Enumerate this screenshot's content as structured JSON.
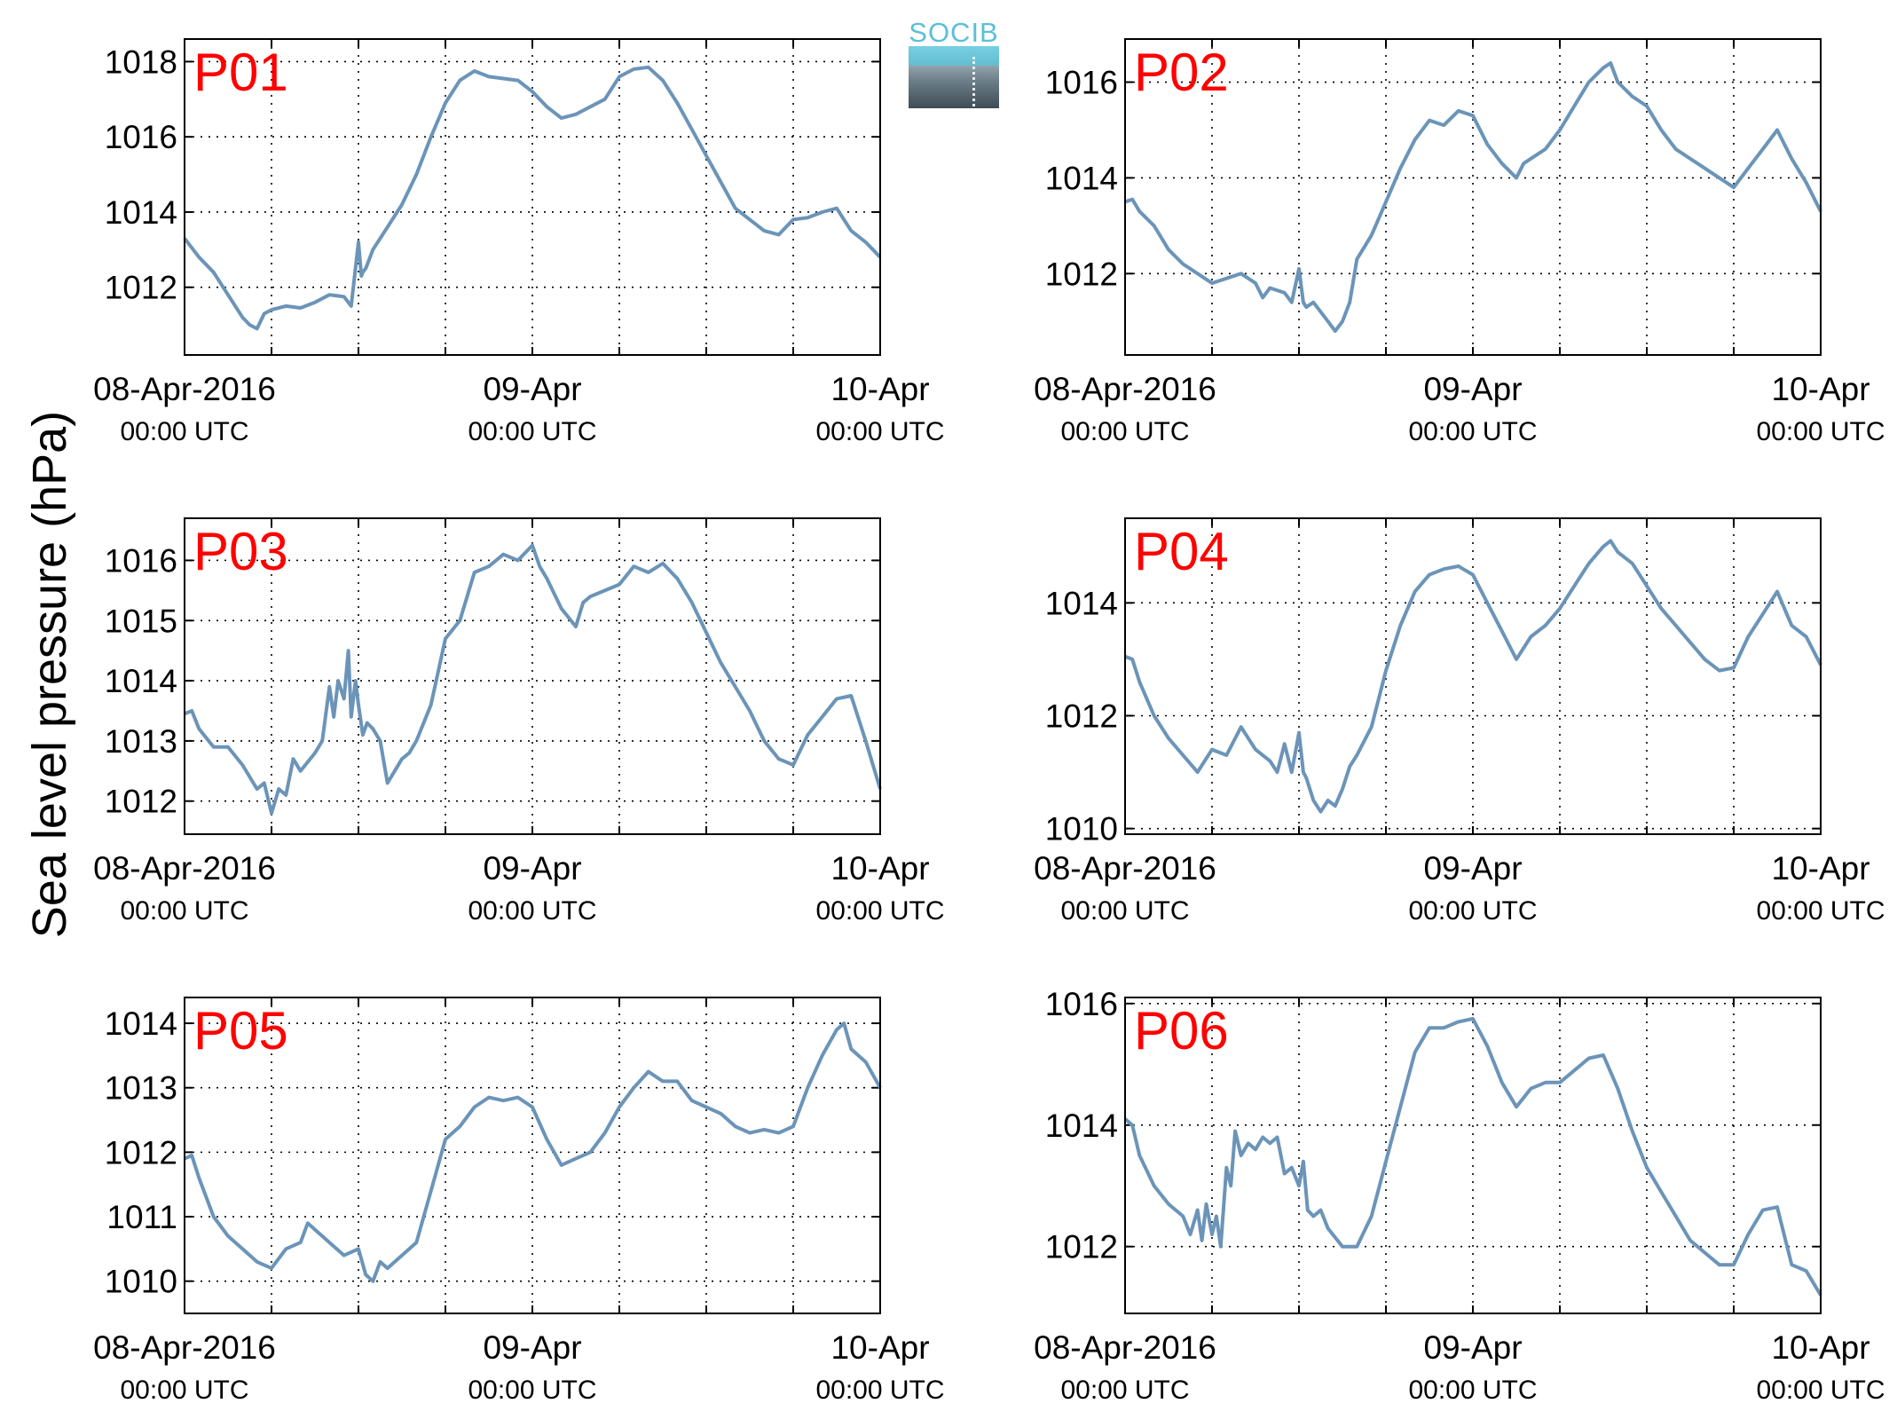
{
  "figure": {
    "ylabel": "Sea level pressure (hPa)",
    "logo_text": "SOCIB",
    "line_color": "#6b94b8",
    "panel_label_color": "#ff0000"
  },
  "chart_data": [
    {
      "type": "line",
      "label": "P01",
      "x_unit": "hours since 08-Apr-2016 00:00 UTC",
      "xlim": [
        0,
        48
      ],
      "ylim": [
        1010.2,
        1018.6
      ],
      "yticks": [
        1012,
        1014,
        1016,
        1018
      ],
      "xticks_major": [
        {
          "at": 0,
          "date": "08-Apr-2016",
          "time": "00:00 UTC"
        },
        {
          "at": 24,
          "date": "09-Apr",
          "time": "00:00 UTC"
        },
        {
          "at": 48,
          "date": "10-Apr",
          "time": "00:00 UTC"
        }
      ],
      "xticks_minor": [
        6,
        12,
        18,
        30,
        36,
        42
      ],
      "grid": true,
      "series": [
        {
          "x": [
            0,
            1,
            2,
            3,
            4,
            4.5,
            5,
            5.5,
            6,
            7,
            8,
            9,
            10,
            11,
            11.5,
            12,
            12.2,
            12.3,
            12.5,
            13,
            14,
            15,
            16,
            17,
            18,
            19,
            20,
            21,
            22,
            23,
            24,
            25,
            26,
            27,
            27.5,
            28,
            29,
            30,
            31,
            32,
            33,
            34,
            35,
            36,
            37,
            38,
            39,
            40,
            41,
            42,
            43,
            44,
            45,
            46,
            47,
            48
          ],
          "y": [
            1013.3,
            1012.8,
            1012.4,
            1011.8,
            1011.2,
            1011.0,
            1010.9,
            1011.3,
            1011.4,
            1011.5,
            1011.45,
            1011.6,
            1011.8,
            1011.75,
            1011.5,
            1013.2,
            1012.3,
            1012.4,
            1012.5,
            1013.0,
            1013.6,
            1014.2,
            1015.0,
            1016.0,
            1016.9,
            1017.5,
            1017.75,
            1017.6,
            1017.55,
            1017.5,
            1017.2,
            1016.8,
            1016.5,
            1016.6,
            1016.7,
            1016.8,
            1017.0,
            1017.6,
            1017.8,
            1017.85,
            1017.5,
            1016.9,
            1016.2,
            1015.5,
            1014.8,
            1014.1,
            1013.8,
            1013.5,
            1013.4,
            1013.8,
            1013.85,
            1014.0,
            1014.1,
            1013.5,
            1013.2,
            1012.8
          ]
        }
      ]
    },
    {
      "type": "line",
      "label": "P02",
      "x_unit": "hours since 08-Apr-2016 00:00 UTC",
      "xlim": [
        0,
        48
      ],
      "ylim": [
        1010.3,
        1016.9
      ],
      "yticks": [
        1012,
        1014,
        1016
      ],
      "xticks_major": [
        {
          "at": 0,
          "date": "08-Apr-2016",
          "time": "00:00 UTC"
        },
        {
          "at": 24,
          "date": "09-Apr",
          "time": "00:00 UTC"
        },
        {
          "at": 48,
          "date": "10-Apr",
          "time": "00:00 UTC"
        }
      ],
      "xticks_minor": [
        6,
        12,
        18,
        30,
        36,
        42
      ],
      "grid": true,
      "series": [
        {
          "x": [
            0,
            0.5,
            1,
            2,
            3,
            4,
            5,
            6,
            7,
            8,
            9,
            9.5,
            10,
            11,
            11.5,
            12,
            12.3,
            12.5,
            13,
            14,
            14.5,
            15,
            15.5,
            16,
            17,
            18,
            19,
            20,
            21,
            22,
            23,
            24,
            25,
            26,
            27,
            27.5,
            28,
            29,
            30,
            31,
            32,
            33,
            33.5,
            34,
            35,
            36,
            37,
            38,
            39,
            40,
            41,
            42,
            43,
            44,
            45,
            46,
            47,
            48
          ],
          "y": [
            1013.5,
            1013.55,
            1013.3,
            1013.0,
            1012.5,
            1012.2,
            1012.0,
            1011.8,
            1011.9,
            1012.0,
            1011.8,
            1011.5,
            1011.7,
            1011.6,
            1011.4,
            1012.1,
            1011.4,
            1011.3,
            1011.4,
            1011.0,
            1010.8,
            1011.0,
            1011.4,
            1012.3,
            1012.8,
            1013.5,
            1014.2,
            1014.8,
            1015.2,
            1015.1,
            1015.4,
            1015.3,
            1014.7,
            1014.3,
            1014.0,
            1014.3,
            1014.4,
            1014.6,
            1015.0,
            1015.5,
            1016.0,
            1016.3,
            1016.4,
            1016.0,
            1015.7,
            1015.5,
            1015.0,
            1014.6,
            1014.4,
            1014.2,
            1014.0,
            1013.8,
            1014.2,
            1014.6,
            1015.0,
            1014.4,
            1013.9,
            1013.3
          ]
        }
      ]
    },
    {
      "type": "line",
      "label": "P03",
      "x_unit": "hours since 08-Apr-2016 00:00 UTC",
      "xlim": [
        0,
        48
      ],
      "ylim": [
        1011.45,
        1016.7
      ],
      "yticks": [
        1012,
        1013,
        1014,
        1015,
        1016
      ],
      "xticks_major": [
        {
          "at": 0,
          "date": "08-Apr-2016",
          "time": "00:00 UTC"
        },
        {
          "at": 24,
          "date": "09-Apr",
          "time": "00:00 UTC"
        },
        {
          "at": 48,
          "date": "10-Apr",
          "time": "00:00 UTC"
        }
      ],
      "xticks_minor": [
        6,
        12,
        18,
        30,
        36,
        42
      ],
      "grid": true,
      "series": [
        {
          "x": [
            0,
            0.5,
            1,
            2,
            3,
            4,
            5,
            5.5,
            6,
            6.5,
            7,
            7.5,
            8,
            9,
            9.5,
            10,
            10.3,
            10.6,
            11,
            11.3,
            11.5,
            11.8,
            12,
            12.3,
            12.6,
            13,
            13.5,
            14,
            15,
            15.5,
            16,
            17,
            18,
            19,
            20,
            21,
            22,
            23,
            24,
            24.5,
            25,
            26,
            27,
            27.5,
            28,
            29,
            30,
            31,
            32,
            33,
            34,
            35,
            36,
            37,
            38,
            39,
            40,
            41,
            42,
            43,
            44,
            45,
            46,
            47,
            48
          ],
          "y": [
            1013.45,
            1013.5,
            1013.2,
            1012.9,
            1012.9,
            1012.6,
            1012.2,
            1012.3,
            1011.8,
            1012.2,
            1012.1,
            1012.7,
            1012.5,
            1012.8,
            1013.0,
            1013.9,
            1013.4,
            1014.0,
            1013.7,
            1014.5,
            1013.4,
            1014.0,
            1013.6,
            1013.1,
            1013.3,
            1013.2,
            1013.0,
            1012.3,
            1012.7,
            1012.8,
            1013.0,
            1013.6,
            1014.7,
            1015.0,
            1015.8,
            1015.9,
            1016.1,
            1016.0,
            1016.25,
            1015.9,
            1015.7,
            1015.2,
            1014.9,
            1015.3,
            1015.4,
            1015.5,
            1015.6,
            1015.9,
            1015.8,
            1015.95,
            1015.7,
            1015.3,
            1014.8,
            1014.3,
            1013.9,
            1013.5,
            1013.0,
            1012.7,
            1012.6,
            1013.1,
            1013.4,
            1013.7,
            1013.75,
            1013.0,
            1012.2
          ]
        }
      ]
    },
    {
      "type": "line",
      "label": "P04",
      "x_unit": "hours since 08-Apr-2016 00:00 UTC",
      "xlim": [
        0,
        48
      ],
      "ylim": [
        1009.9,
        1015.5
      ],
      "yticks": [
        1010,
        1012,
        1014
      ],
      "xticks_major": [
        {
          "at": 0,
          "date": "08-Apr-2016",
          "time": "00:00 UTC"
        },
        {
          "at": 24,
          "date": "09-Apr",
          "time": "00:00 UTC"
        },
        {
          "at": 48,
          "date": "10-Apr",
          "time": "00:00 UTC"
        }
      ],
      "xticks_minor": [
        6,
        12,
        18,
        30,
        36,
        42
      ],
      "grid": true,
      "series": [
        {
          "x": [
            0,
            0.5,
            1,
            2,
            3,
            4,
            5,
            6,
            7,
            8,
            9,
            10,
            10.5,
            11,
            11.5,
            12,
            12.3,
            12.5,
            13,
            13.5,
            14,
            14.5,
            15,
            15.5,
            16,
            17,
            18,
            19,
            20,
            21,
            22,
            23,
            24,
            25,
            26,
            27,
            27.5,
            28,
            29,
            30,
            31,
            32,
            33,
            33.5,
            34,
            35,
            36,
            37,
            38,
            39,
            40,
            41,
            42,
            43,
            44,
            45,
            46,
            47,
            48
          ],
          "y": [
            1013.05,
            1013.0,
            1012.6,
            1012.0,
            1011.6,
            1011.3,
            1011.0,
            1011.4,
            1011.3,
            1011.8,
            1011.4,
            1011.2,
            1011.0,
            1011.5,
            1011.0,
            1011.7,
            1011.0,
            1010.9,
            1010.5,
            1010.3,
            1010.5,
            1010.4,
            1010.7,
            1011.1,
            1011.3,
            1011.8,
            1012.8,
            1013.6,
            1014.2,
            1014.5,
            1014.6,
            1014.65,
            1014.5,
            1014.0,
            1013.5,
            1013.0,
            1013.2,
            1013.4,
            1013.6,
            1013.9,
            1014.3,
            1014.7,
            1015.0,
            1015.1,
            1014.9,
            1014.7,
            1014.3,
            1013.9,
            1013.6,
            1013.3,
            1013.0,
            1012.8,
            1012.85,
            1013.4,
            1013.8,
            1014.2,
            1013.6,
            1013.4,
            1012.9
          ]
        }
      ]
    },
    {
      "type": "line",
      "label": "P05",
      "x_unit": "hours since 08-Apr-2016 00:00 UTC",
      "xlim": [
        0,
        48
      ],
      "ylim": [
        1009.5,
        1014.4
      ],
      "yticks": [
        1010,
        1011,
        1012,
        1013,
        1014
      ],
      "xticks_major": [
        {
          "at": 0,
          "date": "08-Apr-2016",
          "time": "00:00 UTC"
        },
        {
          "at": 24,
          "date": "09-Apr",
          "time": "00:00 UTC"
        },
        {
          "at": 48,
          "date": "10-Apr",
          "time": "00:00 UTC"
        }
      ],
      "xticks_minor": [
        6,
        12,
        18,
        30,
        36,
        42
      ],
      "grid": true,
      "series": [
        {
          "x": [
            0,
            0.5,
            1,
            2,
            3,
            4,
            5,
            6,
            7,
            8,
            8.5,
            9,
            10,
            11,
            12,
            12.5,
            13,
            13.5,
            14,
            15,
            16,
            17,
            18,
            19,
            20,
            21,
            22,
            23,
            24,
            25,
            26,
            27,
            28,
            29,
            30,
            31,
            32,
            33,
            34,
            35,
            36,
            37,
            38,
            39,
            40,
            41,
            42,
            43,
            44,
            45,
            45.5,
            46,
            47,
            48
          ],
          "y": [
            1011.9,
            1011.95,
            1011.6,
            1011.0,
            1010.7,
            1010.5,
            1010.3,
            1010.2,
            1010.5,
            1010.6,
            1010.9,
            1010.8,
            1010.6,
            1010.4,
            1010.5,
            1010.1,
            1010.0,
            1010.3,
            1010.2,
            1010.4,
            1010.6,
            1011.4,
            1012.2,
            1012.4,
            1012.7,
            1012.85,
            1012.8,
            1012.85,
            1012.7,
            1012.2,
            1011.8,
            1011.9,
            1012.0,
            1012.3,
            1012.7,
            1013.0,
            1013.25,
            1013.1,
            1013.1,
            1012.8,
            1012.7,
            1012.6,
            1012.4,
            1012.3,
            1012.35,
            1012.3,
            1012.4,
            1013.0,
            1013.5,
            1013.9,
            1014.0,
            1013.6,
            1013.4,
            1013.0
          ]
        }
      ]
    },
    {
      "type": "line",
      "label": "P06",
      "x_unit": "hours since 08-Apr-2016 00:00 UTC",
      "xlim": [
        0,
        48
      ],
      "ylim": [
        1010.9,
        1016.1
      ],
      "yticks": [
        1012,
        1014,
        1016
      ],
      "xticks_major": [
        {
          "at": 0,
          "date": "08-Apr-2016",
          "time": "00:00 UTC"
        },
        {
          "at": 24,
          "date": "09-Apr",
          "time": "00:00 UTC"
        },
        {
          "at": 48,
          "date": "10-Apr",
          "time": "00:00 UTC"
        }
      ],
      "xticks_minor": [
        6,
        12,
        18,
        30,
        36,
        42
      ],
      "grid": true,
      "series": [
        {
          "x": [
            0,
            0.5,
            1,
            2,
            3,
            4,
            4.5,
            5,
            5.3,
            5.6,
            6,
            6.3,
            6.6,
            7,
            7.3,
            7.6,
            8,
            8.5,
            9,
            9.5,
            10,
            10.5,
            11,
            11.5,
            12,
            12.3,
            12.6,
            13,
            13.5,
            14,
            15,
            16,
            17,
            18,
            19,
            20,
            21,
            22,
            23,
            24,
            25,
            26,
            27,
            28,
            29,
            30,
            31,
            32,
            33,
            34,
            35,
            36,
            37,
            38,
            39,
            40,
            41,
            42,
            43,
            44,
            45,
            46,
            47,
            48
          ],
          "y": [
            1014.1,
            1014.0,
            1013.5,
            1013.0,
            1012.7,
            1012.5,
            1012.2,
            1012.6,
            1012.1,
            1012.7,
            1012.2,
            1012.5,
            1012.0,
            1013.3,
            1013.0,
            1013.9,
            1013.5,
            1013.7,
            1013.6,
            1013.8,
            1013.7,
            1013.8,
            1013.2,
            1013.3,
            1013.0,
            1013.4,
            1012.6,
            1012.5,
            1012.6,
            1012.3,
            1012.0,
            1012.0,
            1012.5,
            1013.4,
            1014.3,
            1015.2,
            1015.6,
            1015.6,
            1015.7,
            1015.75,
            1015.3,
            1014.7,
            1014.3,
            1014.6,
            1014.7,
            1014.7,
            1014.9,
            1015.1,
            1015.15,
            1014.6,
            1013.9,
            1013.3,
            1012.9,
            1012.5,
            1012.1,
            1011.9,
            1011.7,
            1011.7,
            1012.2,
            1012.6,
            1012.65,
            1011.7,
            1011.6,
            1011.2
          ]
        }
      ]
    }
  ]
}
